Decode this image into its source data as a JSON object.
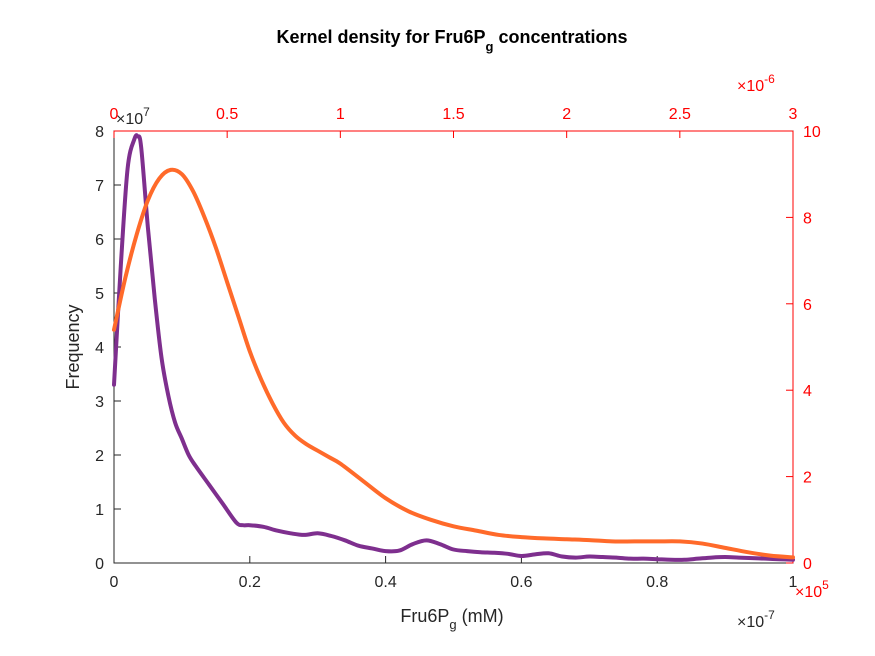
{
  "chart_data": {
    "type": "line",
    "title": "Kernel density for Fru6P",
    "title_subscript": "g",
    "title_suffix": " concentrations",
    "xlabel": "Fru6P",
    "xlabel_subscript": "g",
    "xlabel_suffix": " (mM)",
    "ylabel": "Frequency",
    "bottom_axis": {
      "range": [
        0,
        1
      ],
      "ticks": [
        "0",
        "0.2",
        "0.4",
        "0.6",
        "0.8",
        "1"
      ],
      "exponent_label": "×10",
      "exponent": "-7"
    },
    "left_axis": {
      "range": [
        0,
        8
      ],
      "ticks": [
        "0",
        "1",
        "2",
        "3",
        "4",
        "5",
        "6",
        "7",
        "8"
      ],
      "exponent_label": "×10",
      "exponent": "7"
    },
    "top_axis": {
      "range": [
        0,
        3
      ],
      "ticks": [
        "0",
        "0.5",
        "1",
        "1.5",
        "2",
        "2.5",
        "3"
      ],
      "exponent_label": "×10",
      "exponent": "-6",
      "color": "#ff0000"
    },
    "right_axis": {
      "range": [
        0,
        10
      ],
      "ticks": [
        "0",
        "2",
        "4",
        "6",
        "8",
        "10"
      ],
      "exponent_label": "×10",
      "exponent": "5",
      "color": "#ff0000"
    },
    "series": [
      {
        "axes": "bottom-left",
        "color": "#7e2f8e",
        "x": [
          0,
          0.01,
          0.02,
          0.03,
          0.035,
          0.04,
          0.05,
          0.06,
          0.07,
          0.08,
          0.09,
          0.1,
          0.11,
          0.12,
          0.14,
          0.16,
          0.18,
          0.19,
          0.2,
          0.22,
          0.24,
          0.26,
          0.28,
          0.3,
          0.32,
          0.34,
          0.36,
          0.38,
          0.4,
          0.42,
          0.44,
          0.46,
          0.48,
          0.5,
          0.52,
          0.54,
          0.56,
          0.58,
          0.6,
          0.62,
          0.64,
          0.66,
          0.68,
          0.7,
          0.72,
          0.74,
          0.76,
          0.78,
          0.8,
          0.82,
          0.84,
          0.86,
          0.88,
          0.9,
          0.92,
          0.94,
          0.96,
          0.98,
          1.0
        ],
        "y": [
          3.3,
          5.5,
          7.3,
          7.85,
          7.9,
          7.7,
          6.2,
          4.9,
          3.8,
          3.1,
          2.6,
          2.3,
          2.0,
          1.8,
          1.45,
          1.1,
          0.75,
          0.7,
          0.7,
          0.67,
          0.6,
          0.55,
          0.52,
          0.55,
          0.5,
          0.42,
          0.32,
          0.27,
          0.22,
          0.23,
          0.35,
          0.42,
          0.35,
          0.25,
          0.22,
          0.2,
          0.19,
          0.17,
          0.13,
          0.16,
          0.18,
          0.12,
          0.1,
          0.12,
          0.11,
          0.1,
          0.08,
          0.08,
          0.07,
          0.06,
          0.06,
          0.08,
          0.1,
          0.11,
          0.1,
          0.09,
          0.08,
          0.07,
          0.06
        ]
      },
      {
        "axes": "top-right",
        "color": "#ff6a2a",
        "x": [
          0,
          0.05,
          0.1,
          0.15,
          0.2,
          0.25,
          0.3,
          0.35,
          0.4,
          0.45,
          0.5,
          0.55,
          0.6,
          0.65,
          0.7,
          0.75,
          0.8,
          0.85,
          0.9,
          0.95,
          1.0,
          1.1,
          1.2,
          1.3,
          1.4,
          1.5,
          1.6,
          1.7,
          1.8,
          1.9,
          2.0,
          2.1,
          2.2,
          2.3,
          2.4,
          2.5,
          2.6,
          2.7,
          2.8,
          2.9,
          3.0
        ],
        "y": [
          5.4,
          6.6,
          7.6,
          8.4,
          8.9,
          9.1,
          9.0,
          8.6,
          8.0,
          7.3,
          6.5,
          5.7,
          4.9,
          4.25,
          3.7,
          3.25,
          2.95,
          2.75,
          2.6,
          2.45,
          2.3,
          1.9,
          1.5,
          1.2,
          1.0,
          0.85,
          0.75,
          0.65,
          0.6,
          0.57,
          0.55,
          0.53,
          0.5,
          0.5,
          0.5,
          0.5,
          0.45,
          0.35,
          0.25,
          0.17,
          0.13
        ]
      }
    ]
  }
}
